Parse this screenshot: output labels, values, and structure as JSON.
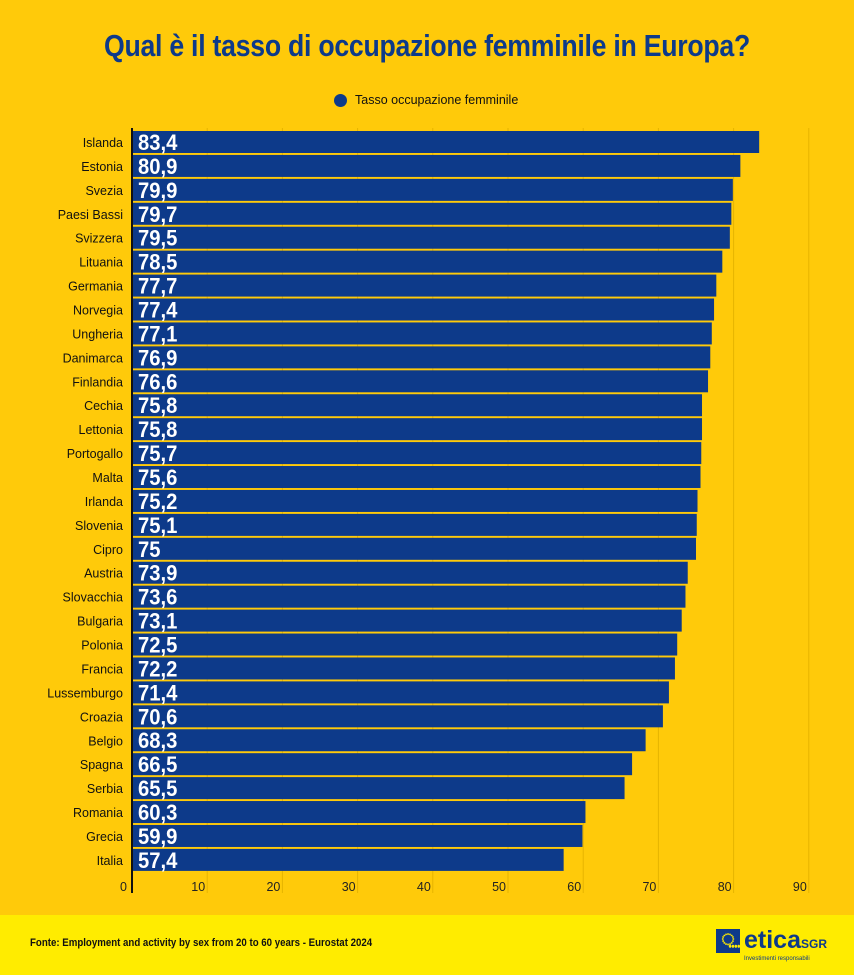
{
  "chart_data": {
    "type": "bar",
    "orientation": "horizontal",
    "title": "Qual è il tasso di occupazione femminile in Europa?",
    "legend": {
      "entries": [
        "Tasso occupazione femminile"
      ],
      "placement": "top"
    },
    "categories": [
      "Islanda",
      "Estonia",
      "Svezia",
      "Paesi Bassi",
      "Svizzera",
      "Lituania",
      "Germania",
      "Norvegia",
      "Ungheria",
      "Danimarca",
      "Finlandia",
      "Cechia",
      "Lettonia",
      "Portogallo",
      "Malta",
      "Irlanda",
      "Slovenia",
      "Cipro",
      "Austria",
      "Slovacchia",
      "Bulgaria",
      "Polonia",
      "Francia",
      "Lussemburgo",
      "Croazia",
      "Belgio",
      "Spagna",
      "Serbia",
      "Romania",
      "Grecia",
      "Italia"
    ],
    "series": [
      {
        "name": "Tasso occupazione femminile",
        "values": [
          83.4,
          80.9,
          79.9,
          79.7,
          79.5,
          78.5,
          77.7,
          77.4,
          77.1,
          76.9,
          76.6,
          75.8,
          75.8,
          75.7,
          75.6,
          75.2,
          75.1,
          75,
          73.9,
          73.6,
          73.1,
          72.5,
          72.2,
          71.4,
          70.6,
          68.3,
          66.5,
          65.5,
          60.3,
          59.9,
          57.4
        ]
      }
    ],
    "data_labels": [
      "83,4",
      "80,9",
      "79,9",
      "79,7",
      "79,5",
      "78,5",
      "77,7",
      "77,4",
      "77,1",
      "76,9",
      "76,6",
      "75,8",
      "75,8",
      "75,7",
      "75,6",
      "75,2",
      "75,1",
      "75",
      "73,9",
      "73,6",
      "73,1",
      "72,5",
      "72,2",
      "71,4",
      "70,6",
      "68,3",
      "66,5",
      "65,5",
      "60,3",
      "59,9",
      "57,4"
    ],
    "xticks": [
      "0",
      "10",
      "20",
      "30",
      "40",
      "50",
      "60",
      "70",
      "80",
      "90"
    ],
    "xlim": [
      0,
      90
    ],
    "grid": "vertical",
    "colors": {
      "bar": "#0D3A8A",
      "background": "#FFCA0A",
      "label": "#FFFFFF"
    }
  },
  "footer": {
    "source": "Fonte: Employment and activity by sex from 20 to 60 years - Eurostat 2024",
    "logo": {
      "brand": "etica",
      "suffix": "SGR",
      "tagline": "Investimenti responsabili"
    }
  }
}
